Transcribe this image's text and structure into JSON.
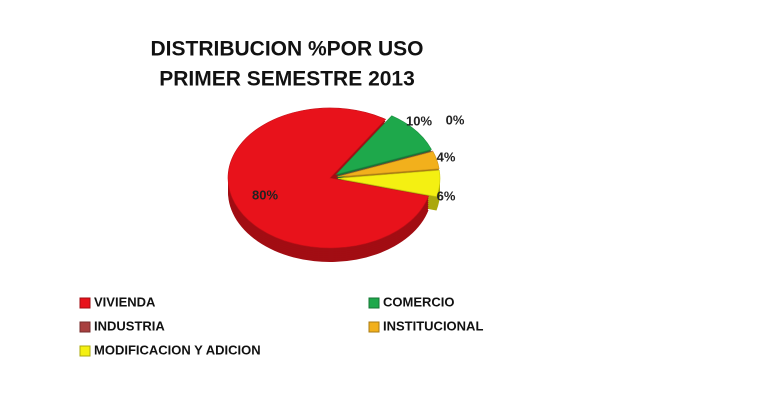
{
  "chart_data": {
    "type": "pie",
    "title": "DISTRIBUCION  %POR USO",
    "subtitle": "PRIMER SEMESTRE 2013",
    "categories": [
      "VIVIENDA",
      "COMERCIO",
      "INDUSTRIA",
      "INSTITUCIONAL",
      "MODIFICACION  Y ADICION"
    ],
    "values": [
      80,
      10,
      0,
      4,
      6
    ],
    "value_labels": [
      "80%",
      "10%",
      "0%",
      "4%",
      "6%"
    ],
    "colors": [
      "#e8121b",
      "#1ea84b",
      "#a8403f",
      "#f2b01c",
      "#f4f012"
    ]
  }
}
